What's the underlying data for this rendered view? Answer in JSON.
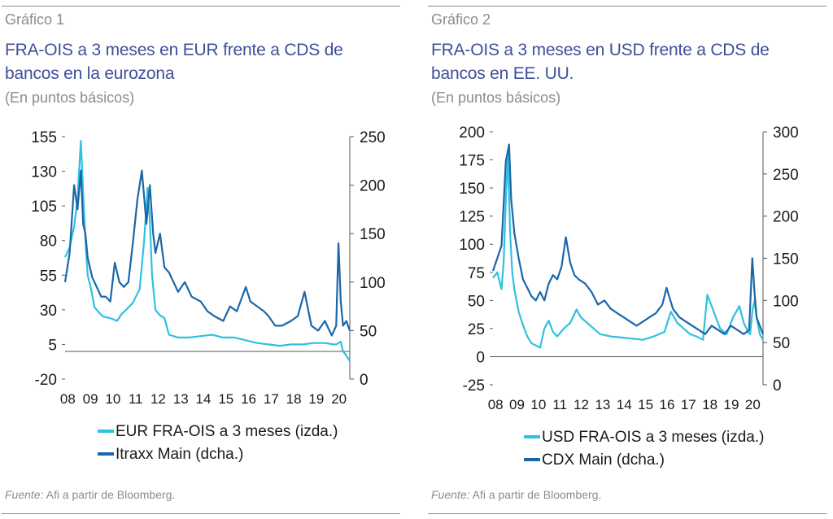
{
  "charts": [
    {
      "label": "Gráfico 1",
      "title": "FRA-OIS a 3 meses en EUR frente a CDS de bancos en la eurozona",
      "subtitle": "(En puntos básicos)",
      "source_prefix": "Fuente:",
      "source_text": " Afi a partir de Bloomberg."
    },
    {
      "label": "Gráfico 2",
      "title": "FRA-OIS a 3 meses en USD frente a CDS de bancos en EE. UU.",
      "subtitle": "(En puntos básicos)",
      "source_prefix": "Fuente:",
      "source_text": " Afi a partir de Bloomberg."
    }
  ],
  "chart_data": [
    {
      "type": "line",
      "x_ticks": [
        "08",
        "09",
        "10",
        "11",
        "12",
        "13",
        "14",
        "15",
        "16",
        "17",
        "18",
        "19",
        "20"
      ],
      "x_range": [
        2008.0,
        2020.6
      ],
      "y_left": {
        "ticks": [
          -20,
          5,
          30,
          55,
          80,
          105,
          130,
          155
        ],
        "ylim": [
          -20,
          155
        ]
      },
      "y_right": {
        "ticks": [
          0,
          50,
          100,
          150,
          200,
          250
        ],
        "ylim": [
          0,
          250
        ]
      },
      "series": [
        {
          "name": "EUR FRA-OIS a 3 meses (izda.)",
          "axis": "left",
          "color": "#2fc1e0",
          "x": [
            2008.0,
            2008.2,
            2008.4,
            2008.55,
            2008.7,
            2008.8,
            2008.9,
            2009.0,
            2009.15,
            2009.3,
            2009.5,
            2009.7,
            2010.0,
            2010.3,
            2010.5,
            2010.7,
            2011.0,
            2011.3,
            2011.5,
            2011.65,
            2011.75,
            2011.85,
            2012.0,
            2012.2,
            2012.4,
            2012.6,
            2012.8,
            2013.0,
            2013.5,
            2014.0,
            2014.5,
            2015.0,
            2015.5,
            2016.0,
            2016.5,
            2017.0,
            2017.5,
            2018.0,
            2018.5,
            2019.0,
            2019.5,
            2019.9,
            2020.0,
            2020.1,
            2020.2,
            2020.3,
            2020.45,
            2020.6
          ],
          "y": [
            68,
            75,
            90,
            110,
            152,
            115,
            80,
            55,
            45,
            32,
            28,
            25,
            24,
            22,
            27,
            30,
            35,
            45,
            80,
            118,
            95,
            55,
            30,
            26,
            24,
            12,
            11,
            10,
            10,
            11,
            12,
            10,
            10,
            8,
            6,
            5,
            4,
            5,
            5,
            6,
            6,
            5,
            5,
            6,
            7,
            0,
            -3,
            -7
          ]
        },
        {
          "name": "Itraxx Main (dcha.)",
          "axis": "right",
          "color": "#1b66a8",
          "x": [
            2008.0,
            2008.2,
            2008.4,
            2008.55,
            2008.7,
            2008.8,
            2008.9,
            2009.0,
            2009.2,
            2009.4,
            2009.6,
            2009.8,
            2010.0,
            2010.2,
            2010.4,
            2010.6,
            2010.8,
            2011.0,
            2011.2,
            2011.4,
            2011.6,
            2011.75,
            2011.9,
            2012.0,
            2012.2,
            2012.4,
            2012.6,
            2012.8,
            2013.0,
            2013.3,
            2013.6,
            2014.0,
            2014.3,
            2014.6,
            2015.0,
            2015.3,
            2015.6,
            2016.0,
            2016.2,
            2016.5,
            2016.8,
            2017.0,
            2017.3,
            2017.6,
            2018.0,
            2018.3,
            2018.6,
            2018.9,
            2019.2,
            2019.5,
            2019.8,
            2020.0,
            2020.1,
            2020.2,
            2020.3,
            2020.45,
            2020.6
          ],
          "y": [
            100,
            130,
            200,
            175,
            215,
            160,
            150,
            125,
            105,
            95,
            85,
            85,
            80,
            120,
            100,
            95,
            100,
            140,
            185,
            215,
            160,
            200,
            150,
            130,
            150,
            115,
            110,
            100,
            90,
            100,
            85,
            80,
            70,
            65,
            60,
            75,
            70,
            95,
            80,
            75,
            70,
            65,
            55,
            55,
            60,
            65,
            90,
            55,
            50,
            60,
            45,
            55,
            140,
            80,
            55,
            60,
            50
          ]
        }
      ]
    },
    {
      "type": "line",
      "x_ticks": [
        "08",
        "09",
        "10",
        "11",
        "12",
        "13",
        "14",
        "15",
        "16",
        "17",
        "18",
        "19",
        "20"
      ],
      "x_range": [
        2008.0,
        2020.6
      ],
      "y_left": {
        "ticks": [
          -25,
          0,
          25,
          50,
          75,
          100,
          125,
          150,
          175,
          200
        ],
        "ylim": [
          -25,
          200
        ]
      },
      "y_right": {
        "ticks": [
          0,
          50,
          100,
          150,
          200,
          250,
          300
        ],
        "ylim": [
          0,
          300
        ]
      },
      "series": [
        {
          "name": "USD FRA-OIS a 3 meses (izda.)",
          "axis": "left",
          "color": "#2fc1e0",
          "x": [
            2008.0,
            2008.2,
            2008.4,
            2008.5,
            2008.6,
            2008.7,
            2008.8,
            2008.9,
            2009.0,
            2009.2,
            2009.4,
            2009.6,
            2009.8,
            2010.0,
            2010.2,
            2010.4,
            2010.6,
            2010.8,
            2011.0,
            2011.3,
            2011.6,
            2011.9,
            2012.1,
            2012.4,
            2012.7,
            2013.0,
            2013.5,
            2014.0,
            2014.5,
            2015.0,
            2015.5,
            2016.0,
            2016.3,
            2016.6,
            2016.9,
            2017.2,
            2017.5,
            2017.8,
            2018.0,
            2018.2,
            2018.4,
            2018.6,
            2018.9,
            2019.2,
            2019.5,
            2019.7,
            2019.9,
            2020.0,
            2020.1,
            2020.2,
            2020.3,
            2020.45,
            2020.6
          ],
          "y": [
            70,
            75,
            60,
            85,
            140,
            180,
            110,
            75,
            60,
            40,
            28,
            18,
            12,
            10,
            8,
            25,
            32,
            22,
            18,
            25,
            30,
            42,
            35,
            30,
            25,
            20,
            18,
            17,
            16,
            15,
            18,
            22,
            40,
            30,
            25,
            20,
            18,
            15,
            55,
            45,
            35,
            25,
            20,
            35,
            45,
            30,
            22,
            20,
            40,
            50,
            35,
            20,
            15
          ]
        },
        {
          "name": "CDX Main (dcha.)",
          "axis": "right",
          "color": "#1b66a8",
          "x": [
            2008.0,
            2008.2,
            2008.4,
            2008.6,
            2008.75,
            2008.85,
            2009.0,
            2009.2,
            2009.4,
            2009.6,
            2009.8,
            2010.0,
            2010.2,
            2010.4,
            2010.6,
            2010.8,
            2011.0,
            2011.2,
            2011.4,
            2011.6,
            2011.8,
            2012.0,
            2012.3,
            2012.6,
            2012.9,
            2013.2,
            2013.5,
            2013.8,
            2014.1,
            2014.4,
            2014.7,
            2015.0,
            2015.3,
            2015.6,
            2015.9,
            2016.1,
            2016.4,
            2016.7,
            2017.0,
            2017.3,
            2017.6,
            2017.9,
            2018.2,
            2018.5,
            2018.8,
            2019.1,
            2019.4,
            2019.7,
            2019.95,
            2020.1,
            2020.2,
            2020.3,
            2020.45,
            2020.6
          ],
          "y": [
            135,
            150,
            165,
            265,
            285,
            220,
            180,
            150,
            125,
            115,
            105,
            100,
            110,
            100,
            120,
            130,
            125,
            140,
            175,
            145,
            130,
            125,
            120,
            110,
            95,
            100,
            90,
            85,
            80,
            75,
            70,
            75,
            80,
            85,
            95,
            115,
            90,
            80,
            75,
            70,
            65,
            60,
            70,
            65,
            60,
            70,
            65,
            60,
            65,
            150,
            110,
            80,
            70,
            60
          ]
        }
      ]
    }
  ]
}
